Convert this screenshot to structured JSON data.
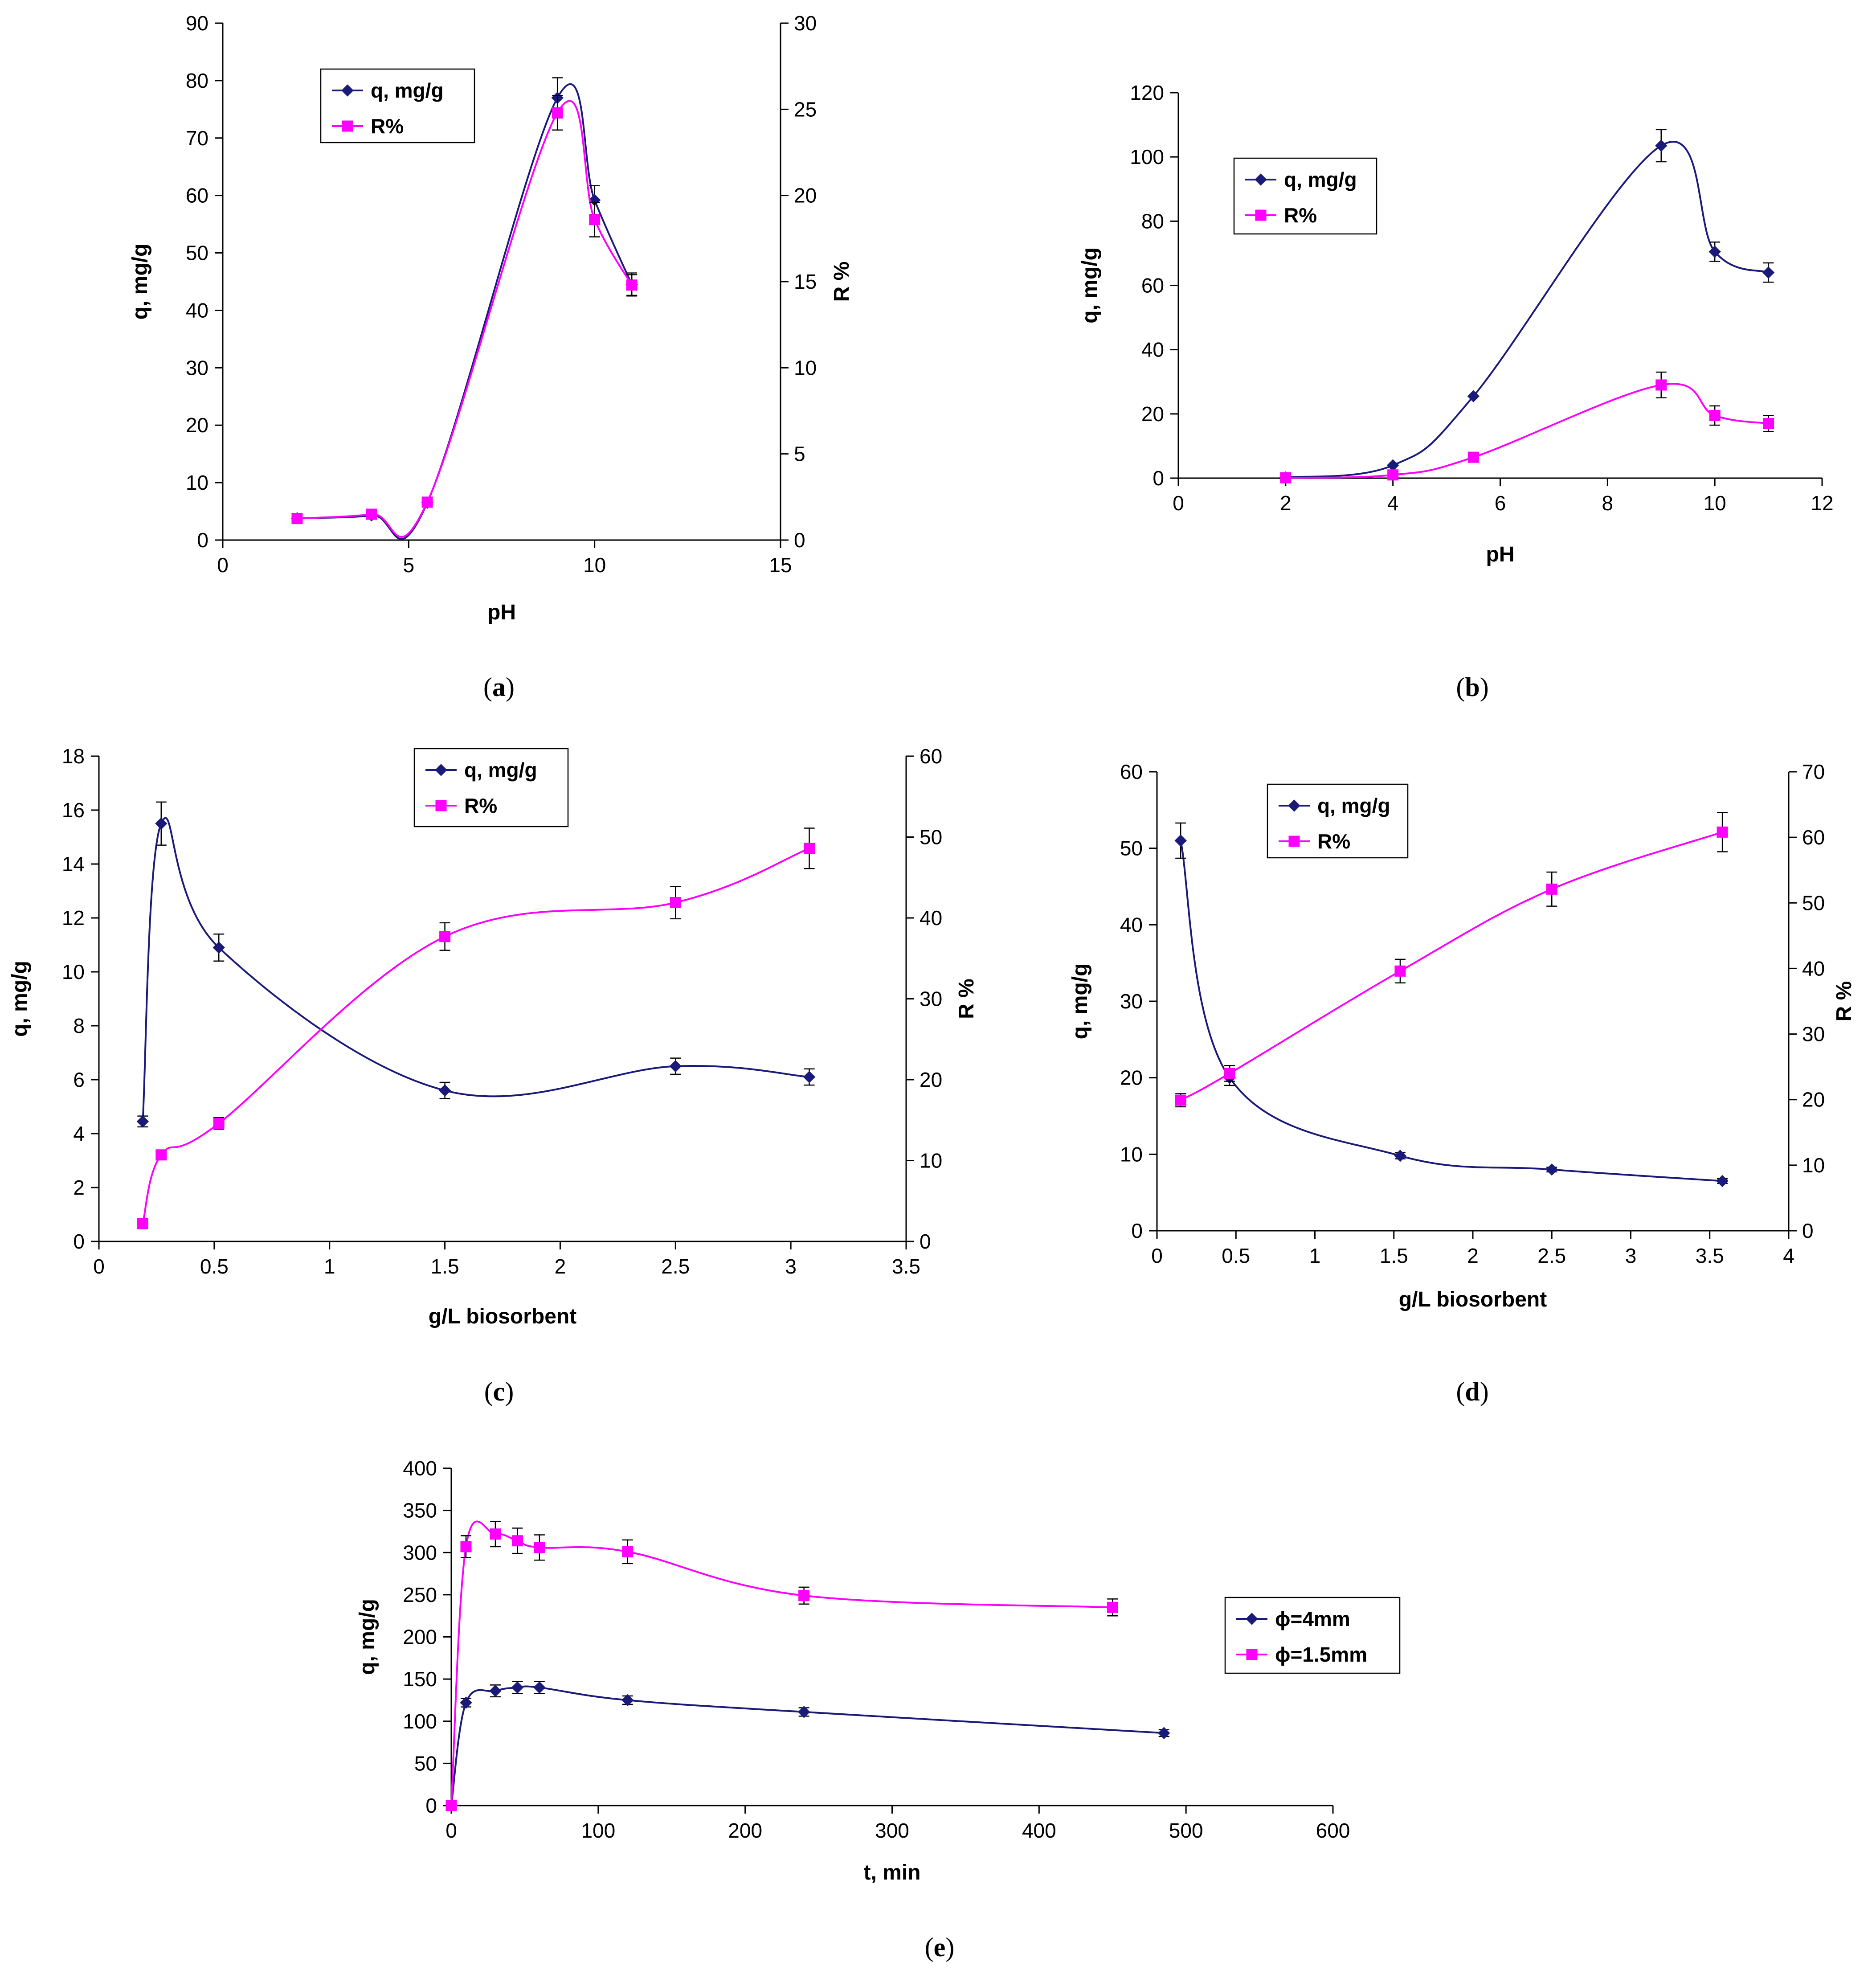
{
  "colors": {
    "q": "#1a1a7a",
    "R": "#ff00ff",
    "axis": "#000000"
  },
  "chart_data": [
    {
      "id": "a",
      "type": "line",
      "caption_label": "a",
      "xlabel": "pH",
      "ylabel": "q, mg/g",
      "y2label": "R %",
      "xlim": [
        0,
        15
      ],
      "xticks": [
        0,
        5,
        10,
        15
      ],
      "ylim": [
        0,
        90
      ],
      "yticks": [
        0,
        10,
        20,
        30,
        40,
        50,
        60,
        70,
        80,
        90
      ],
      "y2lim": [
        0,
        30
      ],
      "y2ticks": [
        0,
        5,
        10,
        15,
        20,
        25,
        30
      ],
      "legend": {
        "position": "top-left",
        "entries": [
          "q, mg/g",
          "R%"
        ]
      },
      "series": [
        {
          "name": "q, mg/g",
          "marker": "diamond",
          "color": "#1a1a7a",
          "axis": "left",
          "x": [
            2,
            4,
            5.5,
            9,
            10,
            11
          ],
          "y": [
            3.8,
            4.3,
            6.5,
            77,
            59.2,
            44.5
          ],
          "err": [
            0,
            0,
            0,
            3.5,
            2.5,
            2
          ]
        },
        {
          "name": "R%",
          "marker": "square",
          "color": "#ff00ff",
          "axis": "right",
          "x": [
            2,
            4,
            5.5,
            9,
            10,
            11
          ],
          "y": [
            1.25,
            1.5,
            2.2,
            24.8,
            18.6,
            14.8
          ],
          "err": [
            0,
            0,
            0,
            1,
            1,
            0.6
          ]
        }
      ]
    },
    {
      "id": "b",
      "type": "line",
      "caption_label": "b",
      "xlabel": "pH",
      "ylabel": "q, mg/g",
      "y2label": "",
      "xlim": [
        0,
        12
      ],
      "xticks": [
        0,
        2,
        4,
        6,
        8,
        10,
        12
      ],
      "ylim": [
        0,
        120
      ],
      "yticks": [
        0,
        20,
        40,
        60,
        80,
        100,
        120
      ],
      "legend": {
        "position": "top-left",
        "entries": [
          "q, mg/g",
          "R%"
        ]
      },
      "series": [
        {
          "name": "q, mg/g",
          "marker": "diamond",
          "color": "#1a1a7a",
          "axis": "left",
          "x": [
            2,
            4,
            5.5,
            9,
            10,
            11
          ],
          "y": [
            0.2,
            4,
            25.5,
            103.5,
            70.5,
            64
          ],
          "err": [
            0,
            0,
            0,
            5,
            3,
            3
          ]
        },
        {
          "name": "R%",
          "marker": "square",
          "color": "#ff00ff",
          "axis": "left",
          "x": [
            2,
            4,
            5.5,
            9,
            10,
            11
          ],
          "y": [
            0.1,
            1,
            6.5,
            29,
            19.5,
            17
          ],
          "err": [
            0,
            0,
            0,
            4,
            3,
            2.5
          ]
        }
      ]
    },
    {
      "id": "c",
      "type": "line",
      "caption_label": "c",
      "xlabel": "g/L biosorbent",
      "ylabel": "q, mg/g",
      "y2label": "R %",
      "xlim": [
        0,
        3.5
      ],
      "xticks": [
        0,
        0.5,
        1,
        1.5,
        2,
        2.5,
        3,
        3.5
      ],
      "ylim": [
        0,
        18
      ],
      "yticks": [
        0,
        2,
        4,
        6,
        8,
        10,
        12,
        14,
        16,
        18
      ],
      "y2lim": [
        0,
        60
      ],
      "y2ticks": [
        0,
        10,
        20,
        30,
        40,
        50,
        60
      ],
      "legend": {
        "position": "top-right",
        "entries": [
          "q, mg/g",
          "R%"
        ]
      },
      "series": [
        {
          "name": "q, mg/g",
          "marker": "diamond",
          "color": "#1a1a7a",
          "axis": "left",
          "x": [
            0.19,
            0.27,
            0.52,
            1.5,
            2.5,
            3.08
          ],
          "y": [
            4.45,
            15.5,
            10.9,
            5.6,
            6.5,
            6.1
          ],
          "err": [
            0.2,
            0.8,
            0.5,
            0.3,
            0.3,
            0.3
          ]
        },
        {
          "name": "R%",
          "marker": "square",
          "color": "#ff00ff",
          "axis": "right",
          "x": [
            0.19,
            0.27,
            0.52,
            1.5,
            2.5,
            3.08
          ],
          "y": [
            2.2,
            10.7,
            14.6,
            37.7,
            41.9,
            48.6
          ],
          "err": [
            0,
            0,
            0.7,
            1.7,
            2,
            2.5
          ]
        }
      ]
    },
    {
      "id": "d",
      "type": "line",
      "caption_label": "d",
      "xlabel": "g/L biosorbent",
      "ylabel": "q, mg/g",
      "y2label": "R %",
      "xlim": [
        0,
        4
      ],
      "xticks": [
        0,
        0.5,
        1,
        1.5,
        2,
        2.5,
        3,
        3.5,
        4
      ],
      "ylim": [
        0,
        60
      ],
      "yticks": [
        0,
        10,
        20,
        30,
        40,
        50,
        60
      ],
      "y2lim": [
        0,
        70
      ],
      "y2ticks": [
        0,
        10,
        20,
        30,
        40,
        50,
        60,
        70
      ],
      "legend": {
        "position": "top-left",
        "entries": [
          "q, mg/g",
          "R%"
        ]
      },
      "series": [
        {
          "name": "q, mg/g",
          "marker": "diamond",
          "color": "#1a1a7a",
          "axis": "left",
          "x": [
            0.15,
            0.46,
            1.54,
            2.5,
            3.58
          ],
          "y": [
            51,
            20,
            9.8,
            8,
            6.5
          ],
          "err": [
            2.3,
            1,
            0.4,
            0.3,
            0.3
          ]
        },
        {
          "name": "R%",
          "marker": "square",
          "color": "#ff00ff",
          "axis": "right",
          "x": [
            0.15,
            0.46,
            1.54,
            2.5,
            3.58
          ],
          "y": [
            19.9,
            24,
            39.6,
            52.1,
            60.8
          ],
          "err": [
            1,
            1.2,
            1.8,
            2.6,
            3
          ]
        }
      ]
    },
    {
      "id": "e",
      "type": "line",
      "caption_label": "e",
      "xlabel": "t, min",
      "ylabel": "q, mg/g",
      "y2label": "",
      "xlim": [
        0,
        600
      ],
      "xticks": [
        0,
        100,
        200,
        300,
        400,
        500,
        600
      ],
      "ylim": [
        0,
        400
      ],
      "yticks": [
        0,
        50,
        100,
        150,
        200,
        250,
        300,
        350,
        400
      ],
      "legend": {
        "position": "right",
        "entries": [
          "ϕ=4mm",
          "ϕ=1.5mm"
        ]
      },
      "series": [
        {
          "name": "ϕ=4mm",
          "marker": "diamond",
          "color": "#1a1a7a",
          "axis": "left",
          "x": [
            0,
            10,
            30,
            45,
            60,
            120,
            240,
            485
          ],
          "y": [
            0,
            122,
            136,
            140,
            140,
            125,
            111,
            86
          ],
          "err": [
            0,
            5,
            7,
            7,
            7,
            5,
            5,
            4
          ]
        },
        {
          "name": "ϕ=1.5mm",
          "marker": "square",
          "color": "#ff00ff",
          "axis": "left",
          "x": [
            0,
            10,
            30,
            45,
            60,
            120,
            240,
            450
          ],
          "y": [
            0,
            307,
            322,
            314,
            306,
            301,
            249,
            235
          ],
          "err": [
            0,
            13,
            15,
            15,
            15,
            14,
            10,
            10
          ]
        }
      ]
    }
  ]
}
